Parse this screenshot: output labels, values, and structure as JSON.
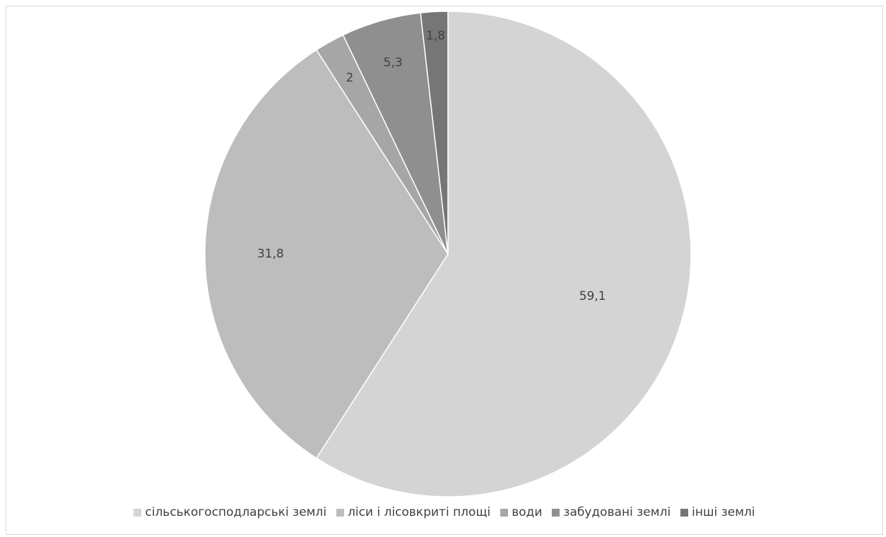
{
  "chart_data": {
    "type": "pie",
    "title": "",
    "start_angle_deg": 0,
    "direction": "clockwise",
    "legend_position": "bottom",
    "data_labels": true,
    "slices": [
      {
        "label": "сільськогосподларські землі",
        "value": 59.1,
        "display": "59,1",
        "color": "#d4d4d4"
      },
      {
        "label": "ліси  і лісовкриті площі",
        "value": 31.8,
        "display": "31,8",
        "color": "#bdbdbd"
      },
      {
        "label": "води",
        "value": 2,
        "display": "2",
        "color": "#a6a6a6"
      },
      {
        "label": "забудовані землі",
        "value": 5.3,
        "display": "5,3",
        "color": "#8f8f8f"
      },
      {
        "label": "інші землі",
        "value": 1.8,
        "display": "1,8",
        "color": "#767676"
      }
    ]
  }
}
